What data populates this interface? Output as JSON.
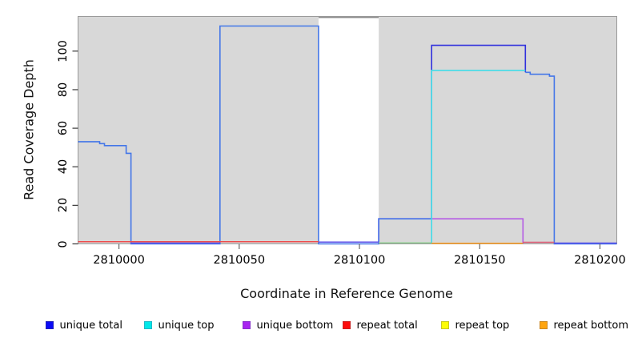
{
  "chart_data": {
    "type": "line",
    "title": "",
    "xlabel": "Coordinate in Reference Genome",
    "ylabel": "Read Coverage Depth",
    "xlim": [
      2809983,
      2810207
    ],
    "ylim": [
      0,
      118
    ],
    "x_ticks": [
      2810000,
      2810050,
      2810100,
      2810150,
      2810200
    ],
    "y_ticks": [
      0,
      20,
      40,
      60,
      80,
      100
    ],
    "grid": false,
    "plot_background": "#ffffff",
    "background_regions": [
      {
        "from": 2809983,
        "to": 2810083,
        "color": "#d8d8d8"
      },
      {
        "from": 2810108,
        "to": 2810207,
        "color": "#d8d8d8"
      }
    ],
    "gap_region": {
      "from": 2810083,
      "to": 2810108,
      "top_value": 117.5,
      "line_color": "#8b8b8b",
      "fill": "#ffffff"
    },
    "series": [
      {
        "id": "unique-bottom",
        "name": "unique bottom",
        "color": "#b55ce5",
        "points": [
          [
            2810108,
            0
          ],
          [
            2810108,
            13
          ],
          [
            2810168,
            13
          ],
          [
            2810168,
            0
          ]
        ]
      },
      {
        "id": "unique-total",
        "name": "unique total",
        "color": "#4376e8",
        "points": [
          [
            2809983,
            53
          ],
          [
            2809992,
            53
          ],
          [
            2809992,
            52
          ],
          [
            2809994,
            52
          ],
          [
            2809994,
            51
          ],
          [
            2810003,
            51
          ],
          [
            2810003,
            47
          ],
          [
            2810005,
            47
          ],
          [
            2810005,
            0
          ],
          [
            2810042,
            0
          ],
          [
            2810042,
            113
          ],
          [
            2810083,
            113
          ],
          [
            2810083,
            0
          ],
          [
            2810108,
            0
          ],
          [
            2810108,
            13
          ],
          [
            2810130,
            13
          ],
          [
            2810130,
            103
          ],
          [
            2810169,
            103
          ],
          [
            2810169,
            89
          ],
          [
            2810171,
            89
          ],
          [
            2810171,
            88
          ],
          [
            2810179,
            88
          ],
          [
            2810179,
            87
          ],
          [
            2810181,
            87
          ],
          [
            2810181,
            0
          ],
          [
            2810207,
            0
          ]
        ],
        "display_segments": [
          {
            "color": "#4376e8",
            "points": [
              [
                2809983,
                53
              ],
              [
                2809992,
                53
              ],
              [
                2809992,
                52
              ],
              [
                2809994,
                52
              ],
              [
                2809994,
                51
              ],
              [
                2810003,
                51
              ],
              [
                2810003,
                47
              ],
              [
                2810005,
                47
              ],
              [
                2810005,
                0
              ],
              [
                2810042,
                0
              ],
              [
                2810042,
                113
              ],
              [
                2810083,
                113
              ],
              [
                2810083,
                0
              ],
              [
                2810108,
                0
              ],
              [
                2810108,
                13
              ],
              [
                2810130,
                13
              ]
            ]
          },
          {
            "color": "#3030dd",
            "points": [
              [
                2810130,
                13
              ],
              [
                2810130,
                103
              ],
              [
                2810169,
                103
              ],
              [
                2810169,
                89
              ]
            ]
          },
          {
            "color": "#4376e8",
            "points": [
              [
                2810169,
                89
              ],
              [
                2810171,
                89
              ],
              [
                2810171,
                88
              ],
              [
                2810179,
                88
              ],
              [
                2810179,
                87
              ],
              [
                2810181,
                87
              ],
              [
                2810181,
                0
              ],
              [
                2810207,
                0
              ]
            ]
          }
        ]
      },
      {
        "id": "unique-top",
        "name": "unique top",
        "color": "#40dce8",
        "points": [
          [
            2810130,
            0
          ],
          [
            2810130,
            90
          ],
          [
            2810169,
            90
          ]
        ]
      }
    ],
    "baseline_segments": [
      {
        "from": 2809983,
        "to": 2810083,
        "color": "#ef4d4d",
        "dy": -2.8
      },
      {
        "from": 2810005,
        "to": 2810042,
        "color": "#5a4ee8",
        "dy": -1.0
      },
      {
        "from": 2810083,
        "to": 2810108,
        "color": "#5a4ee8",
        "dy": -2.2
      },
      {
        "from": 2810108,
        "to": 2810130,
        "color": "#8fcc92",
        "dy": -1.2
      },
      {
        "from": 2810130,
        "to": 2810168,
        "color": "#ff9d21",
        "dy": -0.8
      },
      {
        "from": 2810168,
        "to": 2810181,
        "color": "#d95670",
        "dy": -2.0
      },
      {
        "from": 2810181,
        "to": 2810207,
        "color": "#5a4ee8",
        "dy": -1.0
      }
    ],
    "legend": {
      "position": "bottom",
      "items": [
        {
          "label": "unique total",
          "color": "#0a0af5",
          "border": "#2222bb"
        },
        {
          "label": "unique top",
          "color": "#00e8e8",
          "border": "#1fb8c8"
        },
        {
          "label": "unique bottom",
          "color": "#a825f0",
          "border": "#8833cc"
        },
        {
          "label": "repeat total",
          "color": "#fc0d0d",
          "border": "#cc2222"
        },
        {
          "label": "repeat top",
          "color": "#fdfd05",
          "border": "#c8c822"
        },
        {
          "label": "repeat bottom",
          "color": "#ffa510",
          "border": "#cc8822"
        }
      ]
    },
    "box_color": "#9a9a9a",
    "tick_color_x": "#666666",
    "tick_color_y": "#3a3a3a"
  }
}
